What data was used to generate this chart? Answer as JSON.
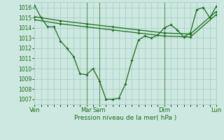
{
  "xlabel": "Pression niveau de la mer( hPa )",
  "ylim": [
    1006.5,
    1016.5
  ],
  "yticks": [
    1007,
    1008,
    1009,
    1010,
    1011,
    1012,
    1013,
    1014,
    1015,
    1016
  ],
  "bg_color": "#cde8e0",
  "grid_color": "#aacfc7",
  "line_color": "#1a6b1a",
  "line1_x": [
    0,
    0.5,
    1,
    1.5,
    2,
    2.5,
    3,
    3.5,
    4,
    4.5,
    5,
    5.5,
    6,
    6.5,
    7,
    7.5,
    8,
    8.5,
    9,
    9.5,
    10,
    10.5,
    11,
    11.5,
    12,
    12.5,
    13,
    13.5,
    14
  ],
  "line1_y": [
    1016.2,
    1015.0,
    1014.1,
    1014.1,
    1012.7,
    1012.0,
    1011.2,
    1009.5,
    1009.4,
    1010.0,
    1008.8,
    1007.0,
    1007.0,
    1007.1,
    1008.5,
    1010.8,
    1012.8,
    1013.2,
    1013.0,
    1013.3,
    1014.0,
    1014.3,
    1013.8,
    1013.1,
    1013.5,
    1015.8,
    1016.0,
    1015.0,
    1016.1
  ],
  "line2_x": [
    0,
    2,
    4,
    6,
    8,
    10,
    12,
    14
  ],
  "line2_y": [
    1015.1,
    1014.7,
    1014.4,
    1014.1,
    1013.8,
    1013.5,
    1013.4,
    1015.6
  ],
  "line3_x": [
    0,
    2,
    4,
    6,
    8,
    10,
    12,
    14
  ],
  "line3_y": [
    1014.8,
    1014.4,
    1014.1,
    1013.8,
    1013.5,
    1013.2,
    1013.1,
    1015.3
  ],
  "day_positions": [
    0,
    4,
    5,
    10,
    14
  ],
  "day_labels": [
    "Ven",
    "Mar",
    "Sam",
    "Dim",
    "Lun"
  ],
  "vline_positions": [
    4,
    5,
    10
  ]
}
